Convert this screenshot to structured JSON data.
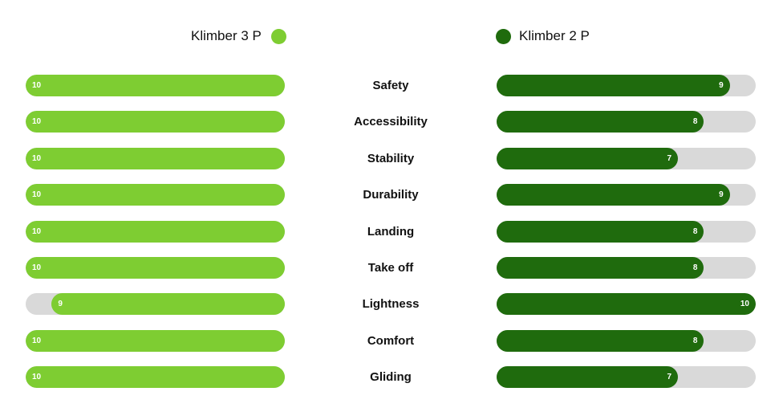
{
  "colors": {
    "klimber3p": "#7ecd32",
    "klimber2p": "#1f6b0d",
    "track": "#d9d9d9"
  },
  "legend": {
    "left": {
      "label": "Klimber 3 P",
      "color": "#7ecd32"
    },
    "right": {
      "label": "Klimber 2 P",
      "color": "#1f6b0d"
    }
  },
  "chart_data": {
    "type": "bar",
    "orientation": "horizontal-diverging",
    "categories": [
      "Safety",
      "Accessibility",
      "Stability",
      "Durability",
      "Landing",
      "Take off",
      "Lightness",
      "Comfort",
      "Gliding"
    ],
    "series": [
      {
        "name": "Klimber 3 P",
        "color": "#7ecd32",
        "values": [
          10,
          10,
          10,
          10,
          10,
          10,
          9,
          10,
          10
        ]
      },
      {
        "name": "Klimber 2 P",
        "color": "#1f6b0d",
        "values": [
          9,
          8,
          7,
          9,
          8,
          8,
          10,
          8,
          7
        ]
      }
    ],
    "xlim": [
      0,
      10
    ],
    "legend_position": "top",
    "grid": false
  }
}
